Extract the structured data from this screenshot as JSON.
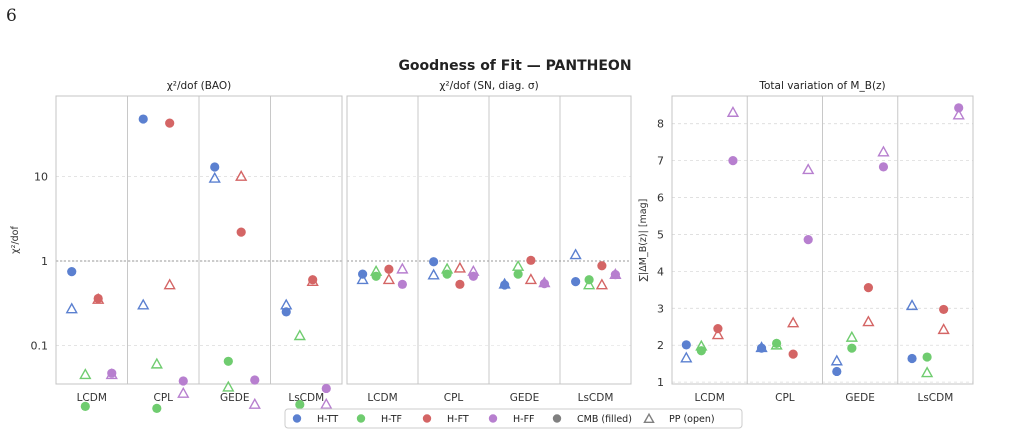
{
  "page_number": "6",
  "figure": {
    "suptitle": "Goodness of Fit — PANTHEON",
    "categories": [
      "LCDM",
      "CPL",
      "GEDE",
      "LsCDM"
    ],
    "legend": [
      {
        "label": "H-TT",
        "color": "#5b80d0",
        "marker": "circle"
      },
      {
        "label": "H-TF",
        "color": "#6fcc6f",
        "marker": "circle"
      },
      {
        "label": "H-FT",
        "color": "#d46565",
        "marker": "circle"
      },
      {
        "label": "H-FF",
        "color": "#b77fcf",
        "marker": "circle"
      },
      {
        "label": "CMB (filled)",
        "color": "#808080",
        "marker": "circle"
      },
      {
        "label": "PP (open)",
        "color": "#808080",
        "marker": "triangle-open"
      }
    ]
  },
  "chart_data": [
    {
      "type": "scatter",
      "title": "χ²/dof (BAO)",
      "ylabel": "χ²/dof",
      "yscale": "log",
      "ylim": [
        0.035,
        90
      ],
      "yticks": [
        {
          "value": 0.1,
          "label": "0.1"
        },
        {
          "value": 1,
          "label": "1"
        },
        {
          "value": 10,
          "label": "10"
        }
      ],
      "reference_line": 1,
      "grid": true,
      "categories": [
        "LCDM",
        "CPL",
        "GEDE",
        "LsCDM"
      ],
      "series": [
        {
          "name": "H-TT",
          "color": "#5b80d0",
          "cmb": [
            [
              -0.28,
              0.75
            ],
            [
              -0.28,
              48
            ],
            [
              -0.28,
              13
            ],
            [
              -0.28,
              0.25
            ]
          ],
          "pp": [
            [
              -0.28,
              0.27
            ],
            [
              -0.28,
              0.3
            ],
            [
              -0.28,
              9.5
            ],
            [
              -0.28,
              0.3
            ]
          ]
        },
        {
          "name": "H-TF",
          "color": "#6fcc6f",
          "cmb": [
            [
              -0.09,
              0.019
            ],
            [
              -0.09,
              0.018
            ],
            [
              -0.09,
              0.065
            ],
            [
              -0.09,
              0.02
            ]
          ],
          "pp": [
            [
              -0.09,
              0.045
            ],
            [
              -0.09,
              0.06
            ],
            [
              -0.09,
              0.032
            ],
            [
              -0.09,
              0.13
            ]
          ]
        },
        {
          "name": "H-FT",
          "color": "#d46565",
          "cmb": [
            [
              0.09,
              0.36
            ],
            [
              0.09,
              43
            ],
            [
              0.09,
              2.2
            ],
            [
              0.09,
              0.6
            ]
          ],
          "pp": [
            [
              0.09,
              0.35
            ],
            [
              0.09,
              0.52
            ],
            [
              0.09,
              10
            ],
            [
              0.09,
              0.57
            ]
          ]
        },
        {
          "name": "H-FF",
          "color": "#b77fcf",
          "cmb": [
            [
              0.28,
              0.047
            ],
            [
              0.28,
              0.038
            ],
            [
              0.28,
              0.039
            ],
            [
              0.28,
              0.031
            ]
          ],
          "pp": [
            [
              0.28,
              0.045
            ],
            [
              0.28,
              0.027
            ],
            [
              0.28,
              0.02
            ],
            [
              0.28,
              0.02
            ]
          ]
        }
      ]
    },
    {
      "type": "scatter",
      "title": "χ²/dof (SN, diag. σ)",
      "ylabel": "",
      "yscale": "log",
      "ylim": [
        0.035,
        90
      ],
      "yticks": [],
      "reference_line": 1,
      "grid": true,
      "categories": [
        "LCDM",
        "CPL",
        "GEDE",
        "LsCDM"
      ],
      "series": [
        {
          "name": "H-TT",
          "color": "#5b80d0",
          "cmb": [
            [
              -0.28,
              0.7
            ],
            [
              -0.28,
              0.98
            ],
            [
              -0.28,
              0.52
            ],
            [
              -0.28,
              0.57
            ]
          ],
          "pp": [
            [
              -0.28,
              0.6
            ],
            [
              -0.28,
              0.68
            ],
            [
              -0.28,
              0.53
            ],
            [
              -0.28,
              1.18
            ]
          ]
        },
        {
          "name": "H-TF",
          "color": "#6fcc6f",
          "cmb": [
            [
              -0.09,
              0.66
            ],
            [
              -0.09,
              0.7
            ],
            [
              -0.09,
              0.7
            ],
            [
              -0.09,
              0.6
            ]
          ],
          "pp": [
            [
              -0.09,
              0.75
            ],
            [
              -0.09,
              0.8
            ],
            [
              -0.09,
              0.86
            ],
            [
              -0.09,
              0.52
            ]
          ]
        },
        {
          "name": "H-FT",
          "color": "#d46565",
          "cmb": [
            [
              0.09,
              0.8
            ],
            [
              0.09,
              0.53
            ],
            [
              0.09,
              1.02
            ],
            [
              0.09,
              0.88
            ]
          ],
          "pp": [
            [
              0.09,
              0.6
            ],
            [
              0.09,
              0.82
            ],
            [
              0.09,
              0.6
            ],
            [
              0.09,
              0.52
            ]
          ]
        },
        {
          "name": "H-FF",
          "color": "#b77fcf",
          "cmb": [
            [
              0.28,
              0.53
            ],
            [
              0.28,
              0.66
            ],
            [
              0.28,
              0.54
            ],
            [
              0.28,
              0.69
            ]
          ],
          "pp": [
            [
              0.28,
              0.8
            ],
            [
              0.28,
              0.75
            ],
            [
              0.28,
              0.55
            ],
            [
              0.28,
              0.69
            ]
          ]
        }
      ]
    },
    {
      "type": "scatter",
      "title": "Total variation of M_B(z)",
      "ylabel": "∑|ΔM_B(z)| [mag]",
      "yscale": "linear",
      "ylim": [
        0.95,
        8.75
      ],
      "yticks": [
        {
          "value": 1,
          "label": "1"
        },
        {
          "value": 2,
          "label": "2"
        },
        {
          "value": 3,
          "label": "3"
        },
        {
          "value": 4,
          "label": "4"
        },
        {
          "value": 5,
          "label": "5"
        },
        {
          "value": 6,
          "label": "6"
        },
        {
          "value": 7,
          "label": "7"
        },
        {
          "value": 8,
          "label": "8"
        }
      ],
      "grid": true,
      "categories": [
        "LCDM",
        "CPL",
        "GEDE",
        "LsCDM"
      ],
      "series": [
        {
          "name": "H-TT",
          "color": "#5b80d0",
          "cmb": [
            [
              -0.31,
              2.01
            ],
            [
              -0.31,
              1.92
            ],
            [
              -0.31,
              1.29
            ],
            [
              -0.31,
              1.64
            ]
          ],
          "pp": [
            [
              -0.31,
              1.65
            ],
            [
              -0.31,
              1.93
            ],
            [
              -0.31,
              1.57
            ],
            [
              -0.31,
              3.07
            ]
          ]
        },
        {
          "name": "H-TF",
          "color": "#6fcc6f",
          "cmb": [
            [
              -0.11,
              1.85
            ],
            [
              -0.11,
              2.05
            ],
            [
              -0.11,
              1.92
            ],
            [
              -0.11,
              1.68
            ]
          ],
          "pp": [
            [
              -0.11,
              1.97
            ],
            [
              -0.11,
              2.0
            ],
            [
              -0.11,
              2.21
            ],
            [
              -0.11,
              1.25
            ]
          ]
        },
        {
          "name": "H-FT",
          "color": "#d46565",
          "cmb": [
            [
              0.11,
              2.45
            ],
            [
              0.11,
              1.76
            ],
            [
              0.11,
              3.56
            ],
            [
              0.11,
              2.97
            ]
          ],
          "pp": [
            [
              0.11,
              2.28
            ],
            [
              0.11,
              2.6
            ],
            [
              0.11,
              2.63
            ],
            [
              0.11,
              2.42
            ]
          ]
        },
        {
          "name": "H-FF",
          "color": "#b77fcf",
          "cmb": [
            [
              0.31,
              7.0
            ],
            [
              0.31,
              4.86
            ],
            [
              0.31,
              6.83
            ],
            [
              0.31,
              8.43
            ]
          ],
          "pp": [
            [
              0.31,
              8.3
            ],
            [
              0.31,
              6.75
            ],
            [
              0.31,
              7.23
            ],
            [
              0.31,
              8.23
            ]
          ]
        }
      ]
    }
  ]
}
